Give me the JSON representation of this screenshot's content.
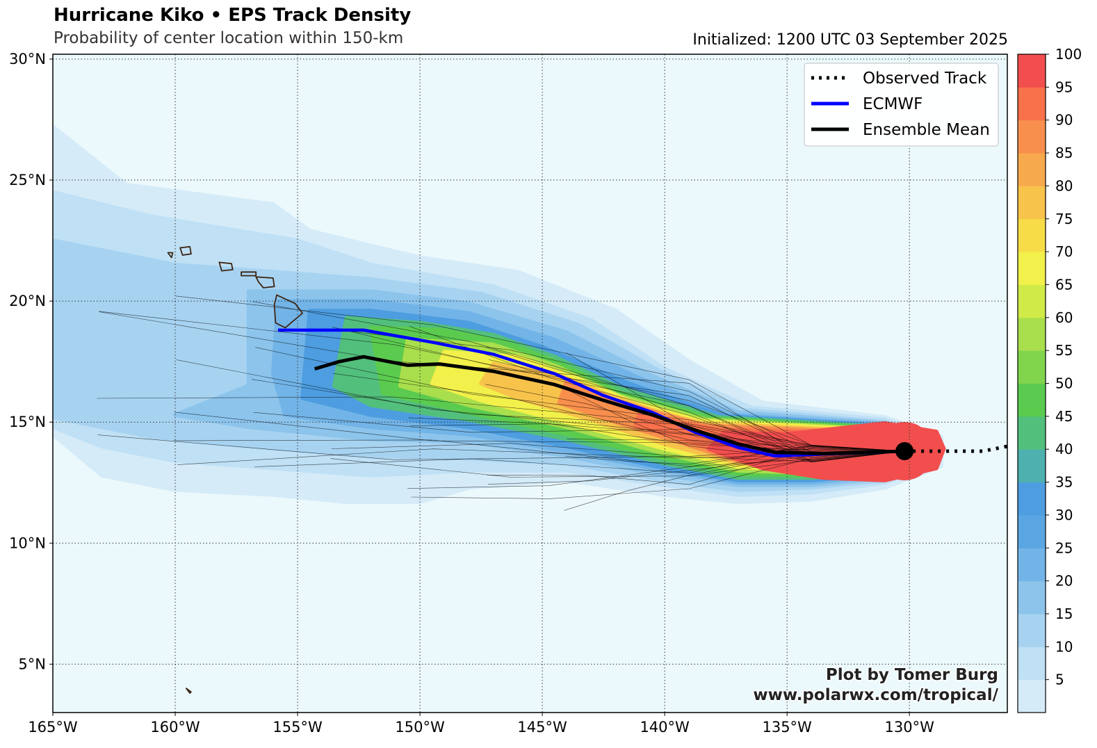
{
  "header": {
    "title": "Hurricane Kiko • EPS Track Density",
    "subtitle": "Probability of center location within 150-km",
    "initialized": "Initialized: 1200 UTC 03 September 2025"
  },
  "map": {
    "lon_range": [
      -165,
      -126
    ],
    "lat_range": [
      3,
      30.2
    ],
    "lon_ticks": [
      {
        "value": -165,
        "label": "165°W"
      },
      {
        "value": -160,
        "label": "160°W"
      },
      {
        "value": -155,
        "label": "155°W"
      },
      {
        "value": -150,
        "label": "150°W"
      },
      {
        "value": -145,
        "label": "145°W"
      },
      {
        "value": -140,
        "label": "140°W"
      },
      {
        "value": -135,
        "label": "135°W"
      },
      {
        "value": -130,
        "label": "130°W"
      }
    ],
    "lat_ticks": [
      {
        "value": 30,
        "label": "30°N"
      },
      {
        "value": 25,
        "label": "25°N"
      },
      {
        "value": 20,
        "label": "20°N"
      },
      {
        "value": 15,
        "label": "15°N"
      },
      {
        "value": 10,
        "label": "10°N"
      },
      {
        "value": 5,
        "label": "5°N"
      }
    ],
    "ocean_color": "#ebf9fc",
    "grid": true,
    "storm_position": {
      "lon": -130.2,
      "lat": 13.8
    }
  },
  "tracks": {
    "observed": {
      "name": "Observed Track",
      "color": "#000000",
      "points": [
        [
          -130.2,
          13.8
        ],
        [
          -128,
          13.8
        ],
        [
          -127,
          13.8
        ],
        [
          -126,
          14.0
        ]
      ]
    },
    "ecmwf": {
      "name": "ECMWF",
      "color": "#0000ff",
      "points": [
        [
          -130.2,
          13.8
        ],
        [
          -131.5,
          13.75
        ],
        [
          -133,
          13.7
        ],
        [
          -135.5,
          13.6
        ],
        [
          -137,
          13.95
        ],
        [
          -138.8,
          14.6
        ],
        [
          -140.5,
          15.4
        ],
        [
          -142.5,
          16.1
        ],
        [
          -144.5,
          17.0
        ],
        [
          -147,
          17.8
        ],
        [
          -149.5,
          18.3
        ],
        [
          -152.3,
          18.8
        ],
        [
          -155.8,
          18.8
        ]
      ]
    },
    "ensemble_mean": {
      "name": "Ensemble Mean",
      "color": "#000000",
      "points": [
        [
          -130.2,
          13.8
        ],
        [
          -131.8,
          13.75
        ],
        [
          -133.5,
          13.7
        ],
        [
          -135.5,
          13.75
        ],
        [
          -137,
          14.1
        ],
        [
          -138.7,
          14.65
        ],
        [
          -140.5,
          15.3
        ],
        [
          -142.5,
          15.9
        ],
        [
          -144.5,
          16.55
        ],
        [
          -147,
          17.1
        ],
        [
          -149.2,
          17.4
        ],
        [
          -150.5,
          17.35
        ],
        [
          -152.3,
          17.7
        ],
        [
          -153.3,
          17.5
        ],
        [
          -154.3,
          17.2
        ]
      ]
    }
  },
  "legend": {
    "position": "top-right",
    "entries": [
      {
        "label": "Observed Track",
        "style": "dotted",
        "color": "#000000"
      },
      {
        "label": "ECMWF",
        "style": "solid",
        "color": "#0000ff"
      },
      {
        "label": "Ensemble Mean",
        "style": "solid",
        "color": "#000000"
      }
    ]
  },
  "colorbar": {
    "min": 0,
    "max": 100,
    "step": 5,
    "labels": [
      "5",
      "10",
      "15",
      "20",
      "25",
      "30",
      "35",
      "40",
      "45",
      "50",
      "55",
      "60",
      "65",
      "70",
      "75",
      "80",
      "85",
      "90",
      "95",
      "100"
    ],
    "colors": [
      "#d5ebf8",
      "#bfe0f5",
      "#a7d3f1",
      "#8cc4ec",
      "#72b4e7",
      "#5aa6e2",
      "#4d9de0",
      "#4fb0b0",
      "#53bf7d",
      "#5bcb4f",
      "#80d54d",
      "#a9de4c",
      "#d0ea47",
      "#f2f04a",
      "#f7dc48",
      "#f7c34b",
      "#f7a94d",
      "#f88f4d",
      "#f9714b",
      "#f24e4e"
    ]
  },
  "credit": {
    "line1": "Plot by Tomer Burg",
    "line2": "www.polarwx.com/tropical/"
  }
}
